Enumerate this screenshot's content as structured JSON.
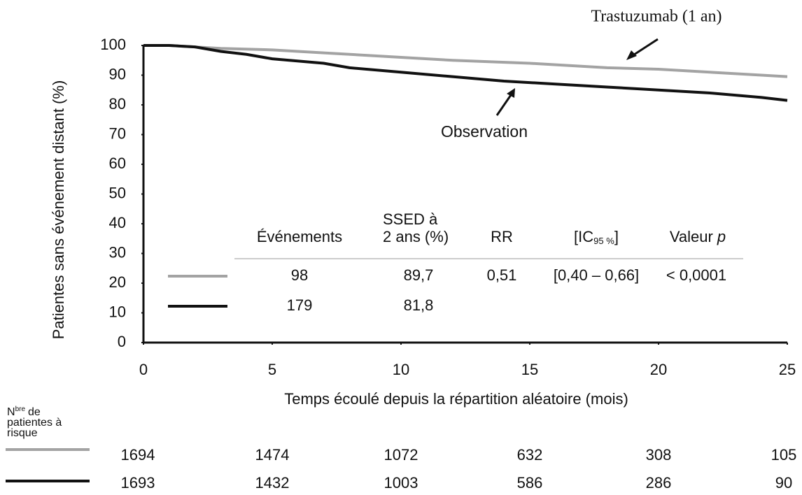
{
  "chart_data": {
    "type": "line",
    "ylabel": "Patientes sans événement distant (%)",
    "xlabel": "Temps écoulé depuis la répartition aléatoire (mois)",
    "xlim": [
      0,
      25
    ],
    "xticks": [
      0,
      5,
      10,
      15,
      20,
      25
    ],
    "ylim": [
      0,
      100
    ],
    "yticks": [
      0,
      10,
      20,
      30,
      40,
      50,
      60,
      70,
      80,
      90,
      100
    ],
    "series": [
      {
        "name": "Trastuzumab (1 an)",
        "color": "#a3a3a3",
        "x": [
          0,
          1,
          2,
          3,
          5,
          7,
          10,
          12,
          15,
          18,
          20,
          22,
          24,
          25
        ],
        "values": [
          100,
          100,
          99.5,
          99,
          98.5,
          97.5,
          96,
          95,
          94,
          92.5,
          92,
          91,
          90,
          89.5
        ]
      },
      {
        "name": "Observation",
        "color": "#111111",
        "x": [
          0,
          1,
          2,
          3,
          4,
          5,
          7,
          8,
          10,
          12,
          14,
          16,
          18,
          20,
          22,
          24,
          25
        ],
        "values": [
          100,
          100,
          99.5,
          98,
          97,
          95.5,
          94,
          92.5,
          91,
          89.5,
          88,
          87,
          86,
          85,
          84,
          82.5,
          81.5
        ]
      }
    ],
    "stats_table": {
      "headers": {
        "events": "Événements",
        "ssed": [
          "SSED à",
          "2 ans (%)"
        ],
        "rr": "RR",
        "ic": {
          "main": "[IC",
          "sub": "95 %",
          "close": "]"
        },
        "p": {
          "main": "Valeur",
          "italic": "p"
        }
      },
      "rows": [
        [
          "98",
          "89,7",
          "0,51",
          "[0,40 – 0,66]",
          "< 0,0001"
        ],
        [
          "179",
          "81,8"
        ]
      ]
    },
    "at_risk": {
      "label": {
        "main": "N",
        "sup": "bre",
        "lines": [
          "de",
          "patientes à",
          "risque"
        ]
      },
      "rows": [
        [
          1694,
          1474,
          1072,
          632,
          308,
          105
        ],
        [
          1693,
          1432,
          1003,
          586,
          286,
          90
        ]
      ]
    }
  }
}
